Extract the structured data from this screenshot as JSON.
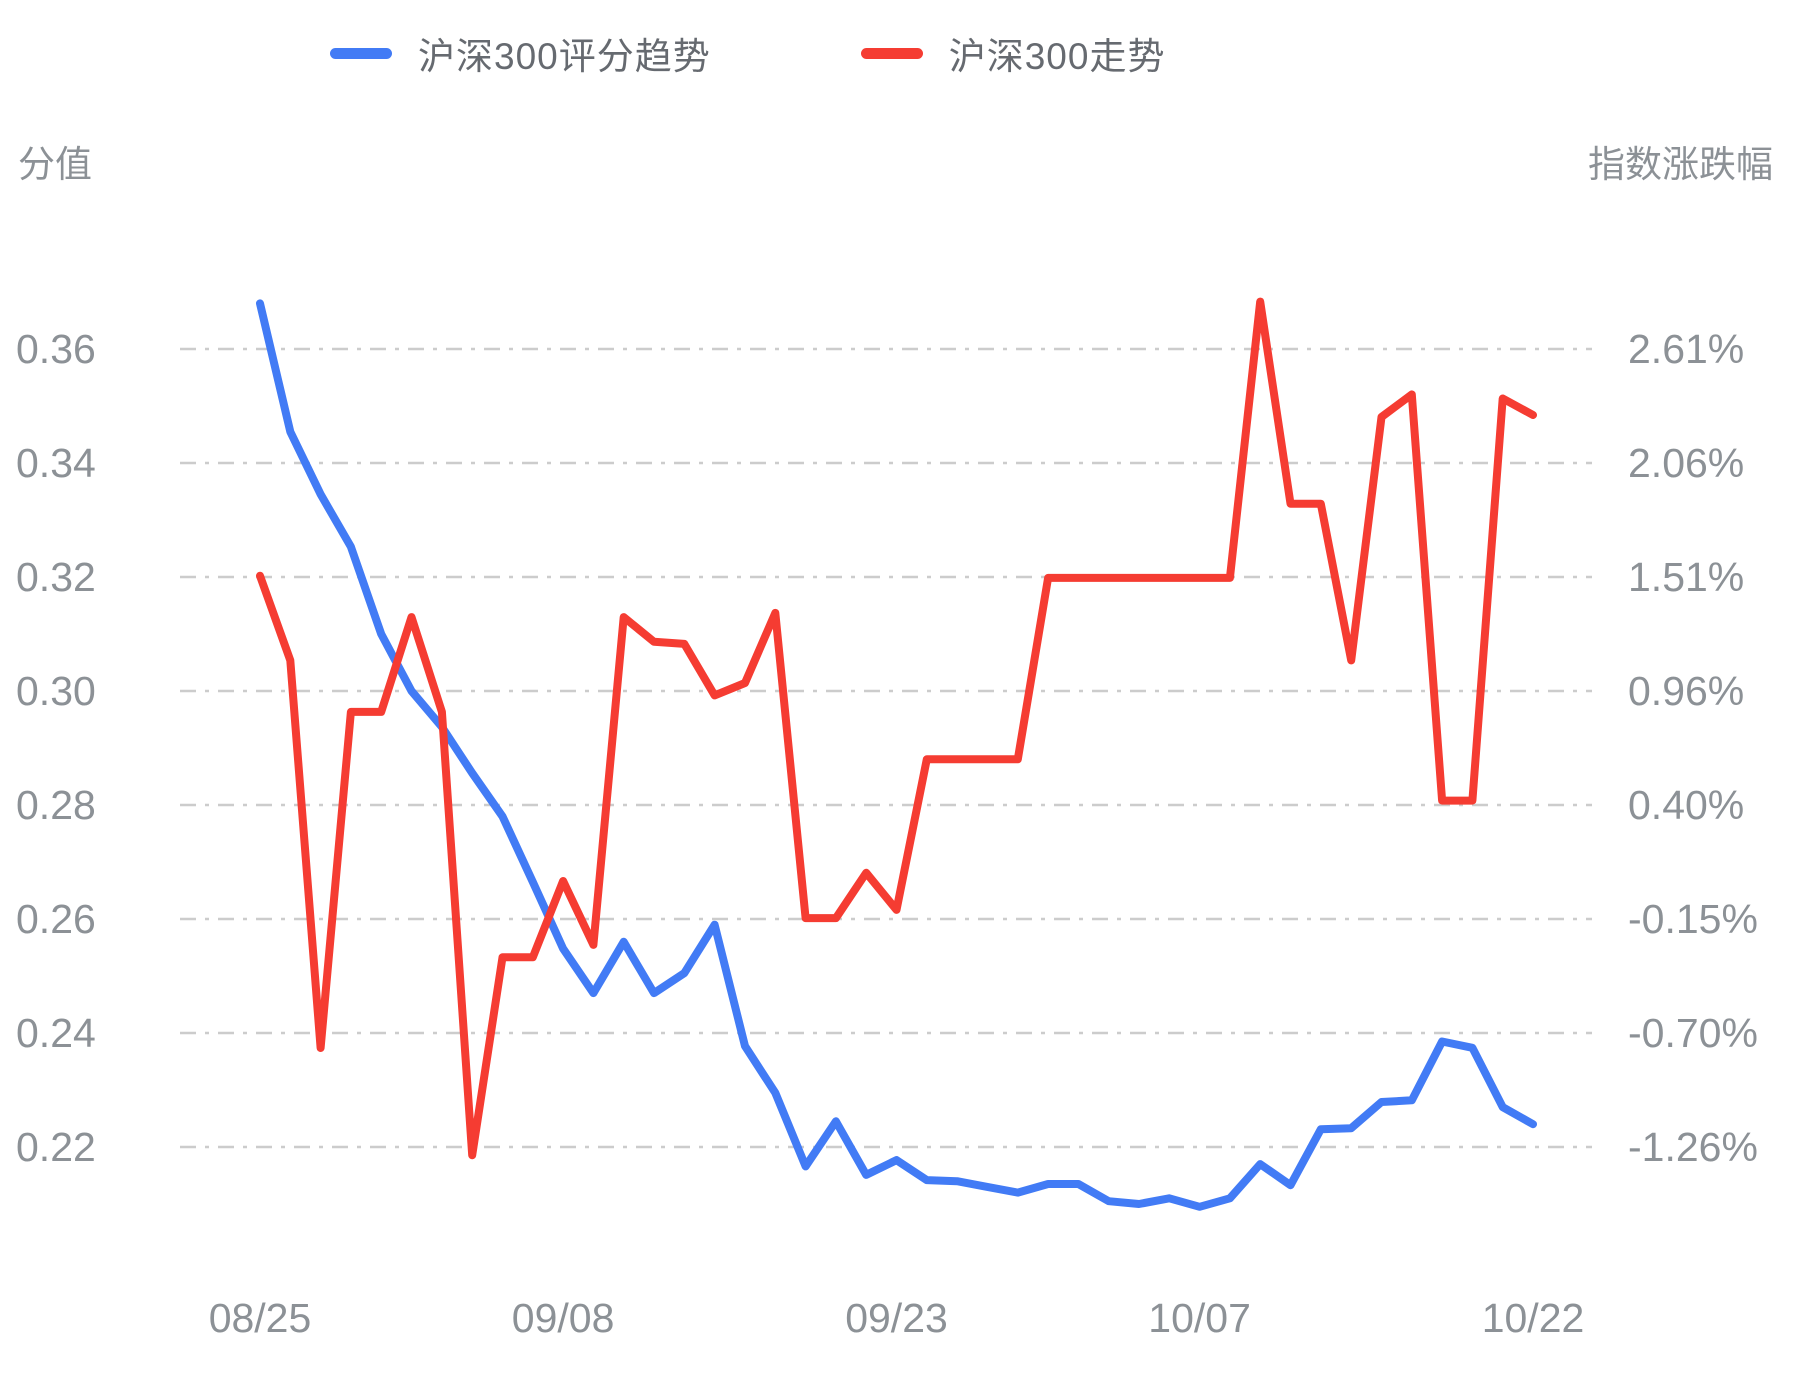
{
  "legend": {
    "items": [
      {
        "label": "沪深300评分趋势",
        "color": "#427bf5"
      },
      {
        "label": "沪深300走势",
        "color": "#f53c32"
      }
    ]
  },
  "axes": {
    "left_title": "分值",
    "right_title": "指数涨跌幅",
    "left_ticks": [
      "0.36",
      "0.34",
      "0.32",
      "0.30",
      "0.28",
      "0.26",
      "0.24",
      "0.22"
    ],
    "right_ticks": [
      "2.61%",
      "2.06%",
      "1.51%",
      "0.96%",
      "0.40%",
      "-0.15%",
      "-0.70%",
      "-1.26%"
    ]
  },
  "chart_data": {
    "type": "line",
    "n_points": 43,
    "x_tick_labels": [
      {
        "index": 0,
        "text": "08/25"
      },
      {
        "index": 10,
        "text": "09/08"
      },
      {
        "index": 21,
        "text": "09/23"
      },
      {
        "index": 31,
        "text": "10/07"
      },
      {
        "index": 42,
        "text": "10/22"
      }
    ],
    "left_axis": {
      "label": "分值",
      "tick_values": [
        0.36,
        0.34,
        0.32,
        0.3,
        0.28,
        0.26,
        0.24,
        0.22
      ]
    },
    "right_axis": {
      "label": "指数涨跌幅",
      "tick_values_percent": [
        2.61,
        2.06,
        1.51,
        0.96,
        0.4,
        -0.15,
        -0.7,
        -1.26
      ]
    },
    "grid": {
      "horizontal": true,
      "vertical": false,
      "style": "dash-dot",
      "color": "#cccccc"
    },
    "legend_position": "top-center",
    "series": [
      {
        "name": "沪深300评分趋势",
        "yaxis": "left",
        "color": "#427bf5",
        "values": [
          0.368,
          0.3455,
          0.3345,
          0.3253,
          0.31,
          0.3,
          0.2937,
          0.2856,
          0.278,
          0.2665,
          0.2548,
          0.247,
          0.256,
          0.247,
          0.2505,
          0.259,
          0.2377,
          0.2295,
          0.2166,
          0.2245,
          0.2151,
          0.2177,
          0.2142,
          0.214,
          0.213,
          0.212,
          0.2135,
          0.2135,
          0.2105,
          0.21,
          0.211,
          0.2095,
          0.211,
          0.217,
          0.2133,
          0.2231,
          0.2233,
          0.2279,
          0.2282,
          0.2385,
          0.2374,
          0.227,
          0.224
        ]
      },
      {
        "name": "沪深300走势",
        "yaxis": "right",
        "color": "#f53c32",
        "values": [
          1.51,
          1.1,
          -0.78,
          0.85,
          0.85,
          1.31,
          0.85,
          -1.3,
          -0.34,
          -0.34,
          0.03,
          -0.28,
          1.31,
          1.19,
          1.18,
          0.93,
          0.99,
          1.33,
          -0.15,
          -0.15,
          0.07,
          -0.11,
          0.62,
          0.62,
          0.62,
          0.62,
          1.5,
          1.5,
          1.5,
          1.5,
          1.5,
          1.5,
          1.5,
          2.84,
          1.86,
          1.86,
          1.1,
          2.28,
          2.39,
          0.42,
          0.42,
          2.37,
          2.29
        ]
      }
    ]
  }
}
